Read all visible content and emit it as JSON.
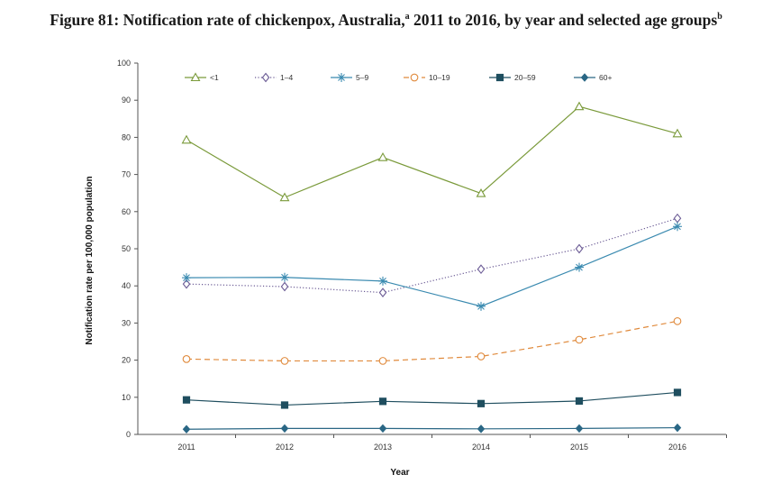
{
  "title": {
    "main": "Figure 81: Notification rate of chickenpox, Australia,",
    "sup_a": "a",
    "middle": " 2011 to 2016, by year and selected age groups",
    "sup_b": "b"
  },
  "chart_data": {
    "type": "line",
    "xlabel": "Year",
    "ylabel": "Notification rate per 100,000 population",
    "x": [
      "2011",
      "2012",
      "2013",
      "2014",
      "2015",
      "2016"
    ],
    "ylim": [
      0,
      100
    ],
    "yticks": [
      0,
      10,
      20,
      30,
      40,
      50,
      60,
      70,
      80,
      90,
      100
    ],
    "grid": false,
    "legend_position": "top",
    "series": [
      {
        "name": "<1",
        "values": [
          79.3,
          63.8,
          74.6,
          64.9,
          88.3,
          81.0
        ],
        "color": "#7a9a3a",
        "marker": "triangle",
        "dash": "solid"
      },
      {
        "name": "1–4",
        "values": [
          40.5,
          39.8,
          38.2,
          44.5,
          50.0,
          58.2
        ],
        "color": "#6b5b95",
        "marker": "diamond-open",
        "dash": "dotted"
      },
      {
        "name": "5–9",
        "values": [
          42.2,
          42.3,
          41.3,
          34.5,
          45.0,
          56.0
        ],
        "color": "#3a8ab0",
        "marker": "star",
        "dash": "solid"
      },
      {
        "name": "10–19",
        "values": [
          20.3,
          19.8,
          19.8,
          21.0,
          25.5,
          30.5
        ],
        "color": "#e08a3c",
        "marker": "circle-open",
        "dash": "dashed"
      },
      {
        "name": "20–59",
        "values": [
          9.3,
          7.9,
          8.9,
          8.3,
          9.0,
          11.3
        ],
        "color": "#1f4e5f",
        "marker": "square",
        "dash": "solid"
      },
      {
        "name": "60+",
        "values": [
          1.4,
          1.6,
          1.6,
          1.5,
          1.6,
          1.8
        ],
        "color": "#2a6785",
        "marker": "diamond",
        "dash": "solid"
      }
    ]
  }
}
